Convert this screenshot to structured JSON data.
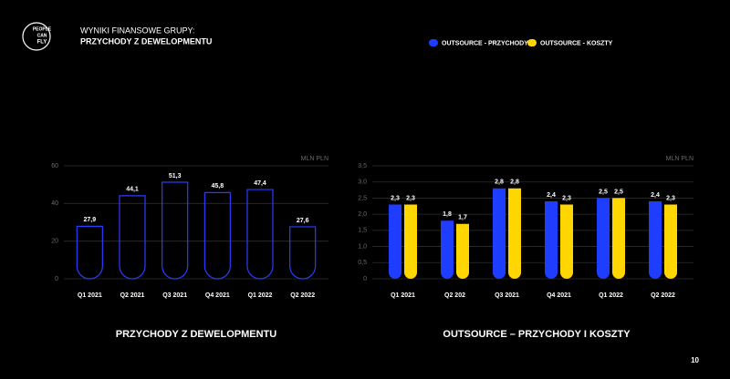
{
  "logo": [
    "PEOPLE",
    "CAN",
    "FLY"
  ],
  "header": {
    "title": "WYNIKI FINANSOWE GRUPY:",
    "subtitle": "PRZYCHODY Z DEWELOPMENTU"
  },
  "page_number": "10",
  "chart_data": [
    {
      "type": "bar",
      "title": "PRZYCHODY Z DEWELOPMENTU",
      "unit": "MLN PLN",
      "categories": [
        "Q1 2021",
        "Q2 2021",
        "Q3 2021",
        "Q4 2021",
        "Q1 2022",
        "Q2 2022"
      ],
      "values": [
        27.9,
        44.1,
        51.3,
        45.8,
        47.4,
        27.6
      ],
      "value_labels": [
        "27,9",
        "44,1",
        "51,3",
        "45,8",
        "47,4",
        "27,6"
      ],
      "color": "#2a3cff",
      "ylim": [
        0,
        60
      ],
      "yticks": [
        0,
        20,
        40,
        60
      ],
      "grid": true
    },
    {
      "type": "grouped_bar",
      "title": "OUTSOURCE – PRZYCHODY I KOSZTY",
      "unit": "MLN PLN",
      "categories": [
        "Q1 2021",
        "Q2 202",
        "Q3 2021",
        "Q4 2021",
        "Q1 2022",
        "Q2 2022"
      ],
      "series": [
        {
          "name": "OUTSOURCE - PRZYCHODY",
          "color": "#1f3dff",
          "values": [
            2.3,
            1.8,
            2.8,
            2.4,
            2.5,
            2.4
          ],
          "value_labels": [
            "2,3",
            "1,8",
            "2,8",
            "2,4",
            "2,5",
            "2,4"
          ]
        },
        {
          "name": "OUTSOURCE - KOSZTY",
          "color": "#ffd600",
          "values": [
            2.3,
            1.7,
            2.8,
            2.3,
            2.5,
            2.3
          ],
          "value_labels": [
            "2,3",
            "1,7",
            "2,8",
            "2,3",
            "2,5",
            "2,3"
          ]
        }
      ],
      "ylim": [
        0,
        3.5
      ],
      "yticks": [
        0,
        {
          "value": 0.5,
          "label": "0,5"
        },
        {
          "value": 1,
          "label": "1,0"
        },
        {
          "value": 1.5,
          "label": "1,5"
        },
        {
          "value": 2,
          "label": "2,0"
        },
        {
          "value": 2.5,
          "label": "2,5"
        },
        {
          "value": 3,
          "label": "3,0"
        },
        {
          "value": 3.5,
          "label": "3,5"
        }
      ],
      "grid": true,
      "legend": "top"
    }
  ]
}
